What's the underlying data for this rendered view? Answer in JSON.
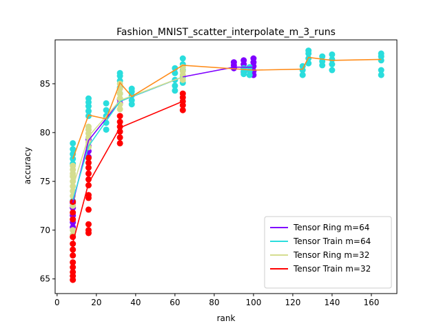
{
  "chart_data": {
    "type": "scatter",
    "title": "Fashion_MNIST_scatter_interpolate_m_3_runs",
    "xlabel": "rank",
    "ylabel": "accuracy",
    "xlim": [
      -1,
      173
    ],
    "ylim": [
      63.5,
      89.5
    ],
    "xticks": [
      0,
      20,
      40,
      60,
      80,
      100,
      120,
      140,
      160
    ],
    "yticks": [
      65,
      70,
      75,
      80,
      85
    ],
    "grid": false,
    "legend_position": "lower-right",
    "series": [
      {
        "name": "Tensor Ring m=64",
        "color": "#7f00ff",
        "points": [
          [
            8,
            70.3
          ],
          [
            8,
            70.8
          ],
          [
            8,
            71.5
          ],
          [
            8,
            72.3
          ],
          [
            8,
            72.8
          ],
          [
            16,
            77.5
          ],
          [
            16,
            78.1
          ],
          [
            16,
            78.6
          ],
          [
            16,
            79.3
          ],
          [
            32,
            83.0
          ],
          [
            32,
            83.4
          ],
          [
            90,
            86.6
          ],
          [
            90,
            86.9
          ],
          [
            90,
            87.2
          ],
          [
            95,
            86.2
          ],
          [
            95,
            86.6
          ],
          [
            95,
            87.0
          ],
          [
            95,
            87.4
          ],
          [
            100,
            85.9
          ],
          [
            100,
            86.3
          ],
          [
            100,
            86.8
          ],
          [
            100,
            87.2
          ],
          [
            100,
            87.6
          ]
        ],
        "line": [
          [
            8,
            72.8
          ],
          [
            16,
            79.2
          ],
          [
            32,
            83.2
          ],
          [
            64,
            85.7
          ],
          [
            90,
            86.7
          ],
          [
            100,
            86.7
          ]
        ]
      },
      {
        "name": "Tensor Train m=64",
        "color": "#2adddd",
        "points": [
          [
            8,
            76.8
          ],
          [
            8,
            77.3
          ],
          [
            8,
            77.8
          ],
          [
            8,
            78.3
          ],
          [
            8,
            78.9
          ],
          [
            8,
            73.0
          ],
          [
            16,
            81.7
          ],
          [
            16,
            82.2
          ],
          [
            16,
            82.7
          ],
          [
            16,
            83.1
          ],
          [
            16,
            83.5
          ],
          [
            25,
            80.3
          ],
          [
            25,
            81.0
          ],
          [
            25,
            81.7
          ],
          [
            25,
            82.3
          ],
          [
            25,
            83.0
          ],
          [
            32,
            84.0
          ],
          [
            32,
            84.6
          ],
          [
            32,
            85.3
          ],
          [
            32,
            85.8
          ],
          [
            32,
            86.1
          ],
          [
            38,
            82.9
          ],
          [
            38,
            83.3
          ],
          [
            38,
            83.8
          ],
          [
            38,
            84.2
          ],
          [
            38,
            84.5
          ],
          [
            60,
            84.3
          ],
          [
            60,
            84.8
          ],
          [
            60,
            85.4
          ],
          [
            60,
            86.1
          ],
          [
            60,
            86.6
          ],
          [
            64,
            85.1
          ],
          [
            64,
            85.7
          ],
          [
            64,
            86.4
          ],
          [
            64,
            87.0
          ],
          [
            64,
            87.6
          ],
          [
            95,
            86.0
          ],
          [
            95,
            86.3
          ],
          [
            95,
            86.6
          ],
          [
            98,
            85.9
          ],
          [
            98,
            86.3
          ],
          [
            98,
            86.7
          ],
          [
            125,
            85.9
          ],
          [
            125,
            86.4
          ],
          [
            125,
            86.8
          ],
          [
            128,
            87.1
          ],
          [
            128,
            87.6
          ],
          [
            128,
            88.1
          ],
          [
            128,
            88.4
          ],
          [
            135,
            86.9
          ],
          [
            135,
            87.3
          ],
          [
            135,
            87.8
          ],
          [
            140,
            86.4
          ],
          [
            140,
            87.0
          ],
          [
            140,
            87.5
          ],
          [
            140,
            88.0
          ],
          [
            165,
            85.9
          ],
          [
            165,
            86.4
          ],
          [
            165,
            87.4
          ],
          [
            165,
            87.8
          ],
          [
            165,
            88.1
          ]
        ],
        "line": [
          [
            8,
            73.1
          ],
          [
            16,
            78.6
          ],
          [
            32,
            83.2
          ],
          [
            64,
            85.7
          ]
        ]
      },
      {
        "name": "Tensor Ring m=32",
        "color": "#d4dd8f",
        "points": [
          [
            8,
            69.5
          ],
          [
            8,
            70.0
          ],
          [
            8,
            72.5
          ],
          [
            8,
            73.5
          ],
          [
            8,
            74.0
          ],
          [
            8,
            74.5
          ],
          [
            8,
            75.0
          ],
          [
            8,
            75.5
          ],
          [
            8,
            75.8
          ],
          [
            8,
            76.2
          ],
          [
            8,
            76.6
          ],
          [
            16,
            78.5
          ],
          [
            16,
            79.0
          ],
          [
            16,
            79.5
          ],
          [
            16,
            79.9
          ],
          [
            16,
            80.3
          ],
          [
            16,
            80.6
          ],
          [
            32,
            82.4
          ],
          [
            32,
            82.9
          ],
          [
            32,
            83.5
          ],
          [
            32,
            84.0
          ],
          [
            32,
            84.5
          ],
          [
            32,
            85.0
          ],
          [
            64,
            85.4
          ],
          [
            64,
            85.9
          ],
          [
            64,
            86.3
          ],
          [
            64,
            86.7
          ]
        ],
        "line": [
          [
            8,
            74.4
          ],
          [
            16,
            79.6
          ],
          [
            32,
            83.3
          ],
          [
            64,
            85.7
          ]
        ]
      },
      {
        "name": "Tensor Train m=32",
        "color": "#ff0000",
        "points": [
          [
            8,
            64.9
          ],
          [
            8,
            65.3
          ],
          [
            8,
            65.7
          ],
          [
            8,
            66.2
          ],
          [
            8,
            66.7
          ],
          [
            8,
            67.4
          ],
          [
            8,
            68.0
          ],
          [
            8,
            68.6
          ],
          [
            8,
            69.3
          ],
          [
            8,
            71.1
          ],
          [
            8,
            71.8
          ],
          [
            8,
            72.9
          ],
          [
            16,
            69.7
          ],
          [
            16,
            70.0
          ],
          [
            16,
            70.6
          ],
          [
            16,
            72.1
          ],
          [
            16,
            73.3
          ],
          [
            16,
            73.6
          ],
          [
            16,
            74.6
          ],
          [
            16,
            75.2
          ],
          [
            16,
            75.8
          ],
          [
            16,
            76.4
          ],
          [
            16,
            76.9
          ],
          [
            16,
            77.4
          ],
          [
            32,
            78.9
          ],
          [
            32,
            79.5
          ],
          [
            32,
            80.1
          ],
          [
            32,
            80.6
          ],
          [
            32,
            81.1
          ],
          [
            32,
            81.7
          ],
          [
            64,
            82.3
          ],
          [
            64,
            82.8
          ],
          [
            64,
            83.2
          ],
          [
            64,
            83.6
          ],
          [
            64,
            84.0
          ]
        ],
        "line": [
          [
            8,
            68.7
          ],
          [
            16,
            74.8
          ],
          [
            32,
            80.5
          ],
          [
            64,
            83.2
          ]
        ]
      },
      {
        "name": "",
        "color": "#ff8c1a",
        "points": [],
        "line": [
          [
            8,
            77.3
          ],
          [
            16,
            81.8
          ],
          [
            25,
            81.4
          ],
          [
            32,
            85.1
          ],
          [
            38,
            83.7
          ],
          [
            64,
            86.9
          ],
          [
            100,
            86.4
          ],
          [
            125,
            86.5
          ],
          [
            128,
            87.7
          ],
          [
            140,
            87.4
          ],
          [
            165,
            87.5
          ]
        ]
      }
    ]
  }
}
